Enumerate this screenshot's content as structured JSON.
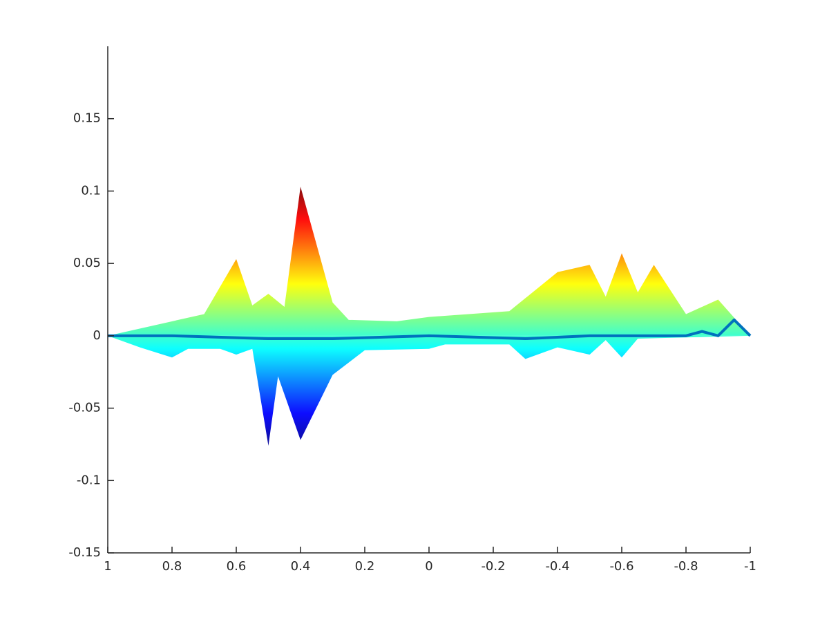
{
  "chart_data": {
    "type": "area",
    "colormap": "jet",
    "xdir": "reverse",
    "xlim": [
      1,
      -1
    ],
    "xticks": [
      1,
      0.8,
      0.6,
      0.4,
      0.2,
      0,
      -0.2,
      -0.4,
      -0.6,
      -0.8,
      -1
    ],
    "ylim": [
      -0.15,
      0.2
    ],
    "yticks": [
      -0.15,
      -0.1,
      -0.05,
      0,
      0.05,
      0.1,
      0.15
    ],
    "series": [
      {
        "x": [
          1,
          0.7,
          0.6,
          0.55,
          0.5,
          0.45,
          0.4,
          0.3,
          0.25,
          0.1,
          0,
          -0.25,
          -0.4,
          -0.5,
          -0.55,
          -0.6,
          -0.65,
          -0.7,
          -0.8,
          -0.9,
          -1
        ],
        "values": [
          0,
          0.015,
          0.053,
          0.021,
          0.029,
          0.02,
          0.103,
          0.023,
          0.011,
          0.01,
          0.013,
          0.017,
          0.044,
          0.049,
          0.027,
          0.057,
          0.03,
          0.049,
          0.015,
          0.025,
          0
        ]
      },
      {
        "x": [
          1,
          0.9,
          0.8,
          0.75,
          0.65,
          0.6,
          0.55,
          0.5,
          0.47,
          0.4,
          0.3,
          0.2,
          0,
          -0.05,
          -0.25,
          -0.3,
          -0.4,
          -0.5,
          -0.55,
          -0.6,
          -0.65,
          -1
        ],
        "values": [
          0,
          -0.008,
          -0.015,
          -0.009,
          -0.009,
          -0.013,
          -0.009,
          -0.076,
          -0.028,
          -0.072,
          -0.027,
          -0.01,
          -0.009,
          -0.006,
          -0.006,
          -0.016,
          -0.008,
          -0.013,
          -0.003,
          -0.015,
          -0.002,
          0
        ]
      },
      {
        "type": "line",
        "color": "#0072bd",
        "x": [
          1,
          0.9,
          0.8,
          0.5,
          0.3,
          0,
          -0.3,
          -0.5,
          -0.8,
          -0.85,
          -0.9,
          -0.95,
          -1
        ],
        "values": [
          0,
          0,
          0,
          -0.002,
          -0.002,
          0,
          -0.002,
          0,
          0,
          0.003,
          0,
          0.011,
          0
        ]
      }
    ]
  }
}
